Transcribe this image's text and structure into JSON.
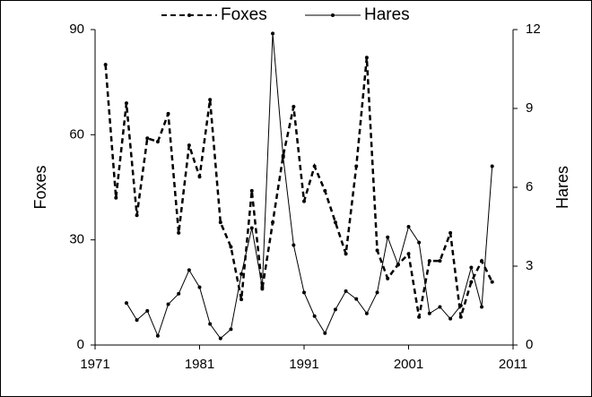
{
  "chart_data": {
    "type": "line",
    "x": [
      1972,
      1973,
      1974,
      1975,
      1976,
      1977,
      1978,
      1979,
      1980,
      1981,
      1982,
      1983,
      1984,
      1985,
      1986,
      1987,
      1988,
      1989,
      1990,
      1991,
      1992,
      1993,
      1994,
      1995,
      1996,
      1997,
      1998,
      1999,
      2000,
      2001,
      2002,
      2003,
      2004,
      2005,
      2006,
      2007,
      2008,
      2009
    ],
    "series": [
      {
        "name": "Foxes",
        "color": "#000000",
        "style": "dashed",
        "values": [
          80,
          42,
          69,
          37,
          59,
          58,
          66,
          32,
          57,
          48,
          70,
          35,
          28,
          13,
          44,
          16,
          35,
          54,
          68,
          41,
          51,
          44,
          35,
          26,
          51,
          82,
          27,
          19,
          23,
          26,
          8,
          24,
          24,
          32,
          8,
          18,
          24,
          18
        ]
      },
      {
        "name": "Hares",
        "color": "#000000",
        "style": "solid",
        "axis": "y2",
        "values": [
          null,
          null,
          1.6,
          0.95,
          1.3,
          0.35,
          1.55,
          1.95,
          2.85,
          2.2,
          0.8,
          0.25,
          0.6,
          2.7,
          4.45,
          2.2,
          11.85,
          7.15,
          3.8,
          2.0,
          1.1,
          0.45,
          1.35,
          2.05,
          1.75,
          1.2,
          2.0,
          4.1,
          3.05,
          4.5,
          3.9,
          1.2,
          1.45,
          1.0,
          1.5,
          2.95,
          1.45,
          6.8
        ]
      }
    ],
    "y_label": "Foxes",
    "y2_label": "Hares",
    "xlim": [
      1971,
      2011
    ],
    "xticks": [
      1971,
      1981,
      1991,
      2001,
      2011
    ],
    "ylim": [
      0,
      90
    ],
    "yticks": [
      0,
      30,
      60,
      90
    ],
    "y2lim": [
      0,
      12
    ],
    "y2ticks": [
      0,
      3,
      6,
      9,
      12
    ],
    "legend": "top"
  }
}
